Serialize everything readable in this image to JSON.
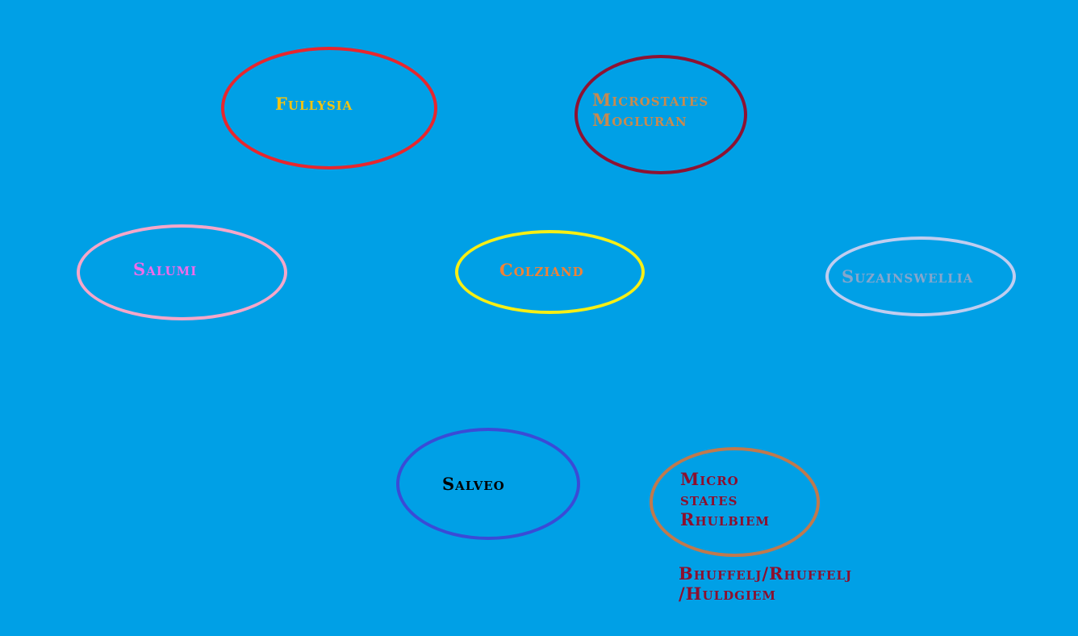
{
  "nodes": [
    {
      "id": "fullysia",
      "label": "Fullysia",
      "text_color": "#f2c311",
      "border_color": "#e8262d"
    },
    {
      "id": "microstates-mogluran",
      "label_lines": [
        "Microstates",
        "Mogluran"
      ],
      "text_color": "#c88a4e",
      "border_color": "#8e1232"
    },
    {
      "id": "salumi",
      "label": "Salumi",
      "text_color": "#f06bea",
      "border_color": "#f5a7c9"
    },
    {
      "id": "colziand",
      "label": "Colziand",
      "text_color": "#f28234",
      "border_color": "#f7ef14"
    },
    {
      "id": "suzainswellia",
      "label": "Suzainswellia",
      "text_color": "#86a6cc",
      "border_color": "#c0cdf0"
    },
    {
      "id": "salveo",
      "label": "Salveo",
      "text_color": "#000000",
      "border_color": "#3a4bd6"
    },
    {
      "id": "micro-states-rhulbiem",
      "label_lines": [
        "Micro",
        "states",
        "Rhulbiem"
      ],
      "text_color": "#8c0f2e",
      "border_color": "#c0794d"
    }
  ],
  "caption": {
    "lines": [
      "Bhuffelj/Rhuffelj",
      "/Huldgiem"
    ],
    "text_color": "#8c0f2e"
  },
  "background_color": "#00a0e6"
}
